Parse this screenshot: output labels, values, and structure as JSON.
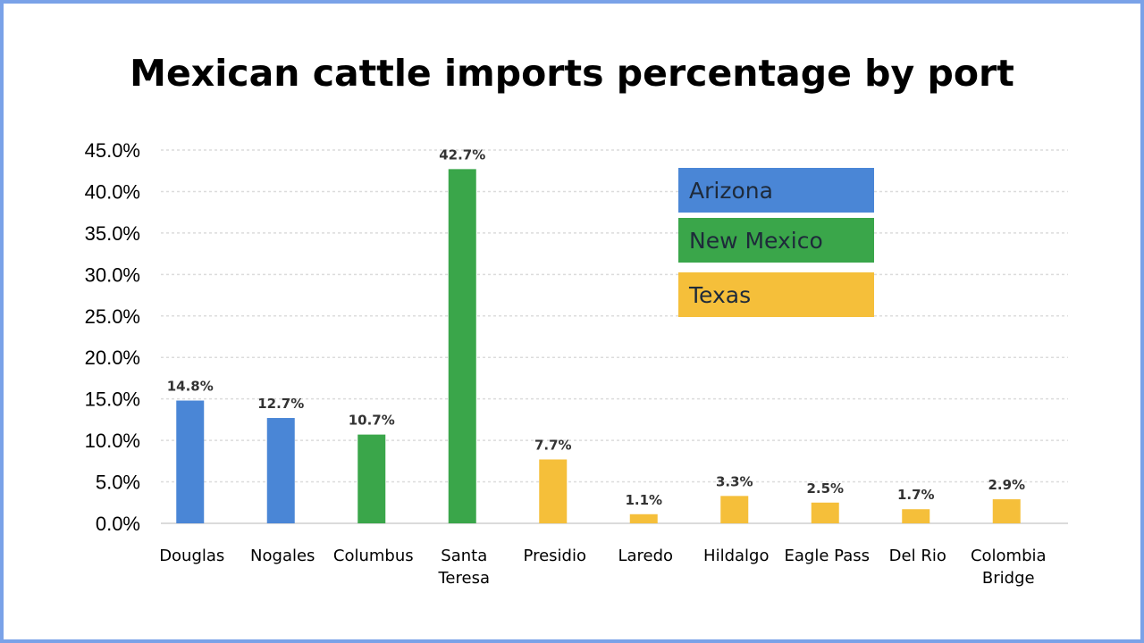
{
  "chart_data": {
    "type": "bar",
    "title": "Mexican cattle imports percentage by port",
    "xlabel": "",
    "ylabel": "",
    "ylim": [
      0,
      45
    ],
    "yticks": [
      "0.0%",
      "5.0%",
      "10.0%",
      "15.0%",
      "20.0%",
      "25.0%",
      "30.0%",
      "35.0%",
      "40.0%",
      "45.0%"
    ],
    "grid": true,
    "legend_position": "top-right",
    "categories": [
      [
        "Douglas"
      ],
      [
        "Nogales"
      ],
      [
        "Columbus"
      ],
      [
        "Santa",
        "Teresa"
      ],
      [
        "Presidio"
      ],
      [
        "Laredo"
      ],
      [
        "Hildalgo"
      ],
      [
        "Eagle Pass"
      ],
      [
        "Del Rio"
      ],
      [
        "Colombia",
        "Bridge"
      ]
    ],
    "values": [
      14.8,
      12.7,
      10.7,
      42.7,
      7.7,
      1.1,
      3.3,
      2.5,
      1.7,
      2.9
    ],
    "value_labels": [
      "14.8%",
      "12.7%",
      "10.7%",
      "42.7%",
      "7.7%",
      "1.1%",
      "3.3%",
      "2.5%",
      "1.7%",
      "2.9%"
    ],
    "groups": [
      "Arizona",
      "Arizona",
      "New Mexico",
      "New Mexico",
      "Texas",
      "Texas",
      "Texas",
      "Texas",
      "Texas",
      "Texas"
    ],
    "legend": [
      {
        "name": "Arizona",
        "color": "#4a86d6"
      },
      {
        "name": "New Mexico",
        "color": "#3aa64a"
      },
      {
        "name": "Texas",
        "color": "#f5bf3a"
      }
    ]
  }
}
